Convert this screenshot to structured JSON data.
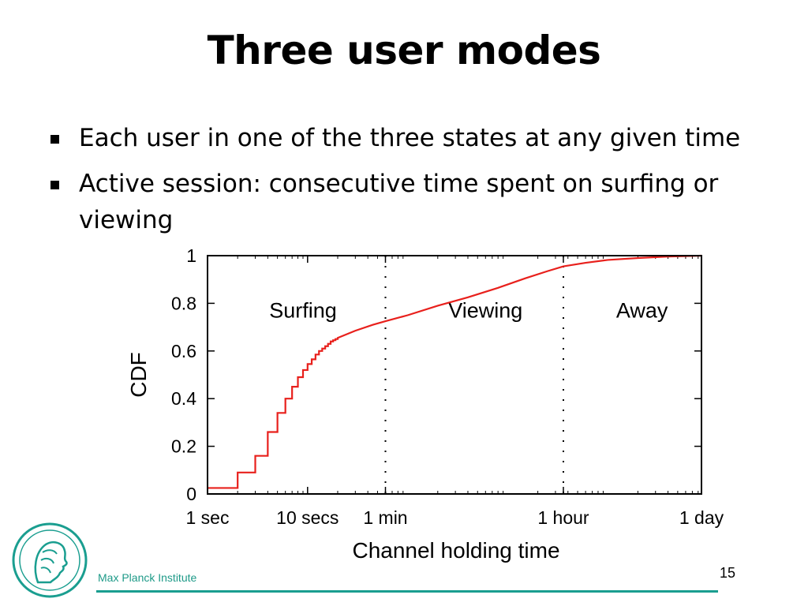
{
  "slide": {
    "title": "Three user modes",
    "bullets": [
      "Each user in one of the three states at any given time",
      "Active session: consecutive time spent on surfing or viewing"
    ]
  },
  "footer": {
    "institute": "Max Planck Institute",
    "page_number": "15"
  },
  "logo": {
    "icon": "minerva-head-logo",
    "color": "#1a9e90"
  },
  "chart_data": {
    "type": "line",
    "title": "",
    "xlabel": "Channel holding time",
    "ylabel": "CDF",
    "x_scale": "log",
    "x_unit": "seconds",
    "xlim": [
      1,
      86400
    ],
    "ylim": [
      0,
      1
    ],
    "x_ticks": [
      {
        "value": 1,
        "label": "1 sec"
      },
      {
        "value": 10,
        "label": "10 secs"
      },
      {
        "value": 60,
        "label": "1 min"
      },
      {
        "value": 3600,
        "label": "1 hour"
      },
      {
        "value": 86400,
        "label": "1 day"
      }
    ],
    "y_ticks": [
      {
        "value": 0,
        "label": "0"
      },
      {
        "value": 0.2,
        "label": "0.2"
      },
      {
        "value": 0.4,
        "label": "0.4"
      },
      {
        "value": 0.6,
        "label": "0.6"
      },
      {
        "value": 0.8,
        "label": "0.8"
      },
      {
        "value": 1,
        "label": "1"
      }
    ],
    "grid": false,
    "line_color": "#e8201c",
    "region_boundaries": [
      60,
      3600
    ],
    "regions": [
      {
        "label": "Surfing",
        "x": 9
      },
      {
        "label": "Viewing",
        "x": 600
      },
      {
        "label": "Away",
        "x": 22000
      }
    ],
    "steps": [
      [
        1,
        0.025
      ],
      [
        2,
        0.09
      ],
      [
        3,
        0.16
      ],
      [
        4,
        0.26
      ],
      [
        5,
        0.34
      ],
      [
        6,
        0.4
      ],
      [
        7,
        0.45
      ],
      [
        8,
        0.49
      ],
      [
        9,
        0.52
      ],
      [
        10,
        0.545
      ],
      [
        11,
        0.565
      ],
      [
        12,
        0.585
      ],
      [
        13,
        0.6
      ],
      [
        14,
        0.61
      ],
      [
        15,
        0.62
      ],
      [
        16,
        0.63
      ],
      [
        17,
        0.64
      ],
      [
        18,
        0.645
      ],
      [
        19,
        0.65
      ],
      [
        20,
        0.655
      ]
    ],
    "curve": [
      [
        20,
        0.655
      ],
      [
        30,
        0.685
      ],
      [
        45,
        0.71
      ],
      [
        60,
        0.725
      ],
      [
        100,
        0.75
      ],
      [
        200,
        0.79
      ],
      [
        400,
        0.825
      ],
      [
        800,
        0.865
      ],
      [
        1500,
        0.905
      ],
      [
        2500,
        0.935
      ],
      [
        3600,
        0.955
      ],
      [
        6000,
        0.97
      ],
      [
        10000,
        0.982
      ],
      [
        20000,
        0.99
      ],
      [
        40000,
        0.996
      ],
      [
        86400,
        1.0
      ]
    ]
  }
}
